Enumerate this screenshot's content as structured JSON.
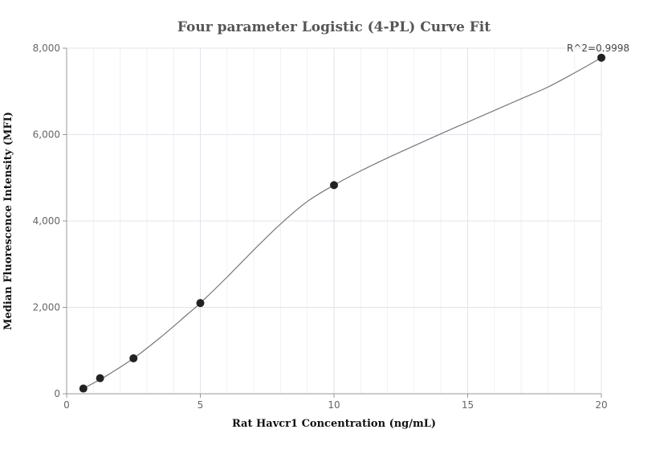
{
  "chart_data": {
    "type": "scatter",
    "title": "Four parameter Logistic (4-PL) Curve Fit",
    "xlabel": "Rat Havcr1 Concentration (ng/mL)",
    "ylabel": "Median Fluorescence Intensity (MFI)",
    "xlim": [
      0,
      20
    ],
    "ylim": [
      0,
      8000
    ],
    "x_ticks": [
      0,
      5,
      10,
      15,
      20
    ],
    "x_tick_labels": [
      "0",
      "5",
      "10",
      "15",
      "20"
    ],
    "y_ticks": [
      0,
      2000,
      4000,
      6000,
      8000
    ],
    "y_tick_labels": [
      "0",
      "2,000",
      "4,000",
      "6,000",
      "8,000"
    ],
    "grid": true,
    "annotation": "R^2=0.9998",
    "series": [
      {
        "points": [
          {
            "x": 0.625,
            "y": 120
          },
          {
            "x": 1.25,
            "y": 360
          },
          {
            "x": 2.5,
            "y": 820
          },
          {
            "x": 5,
            "y": 2100
          },
          {
            "x": 10,
            "y": 4830
          },
          {
            "x": 20,
            "y": 7780
          }
        ],
        "color": "#222222"
      }
    ],
    "fit_curve": {
      "x": [
        0.625,
        1.5,
        2.5,
        3.5,
        4.5,
        5,
        6,
        7,
        8,
        9,
        10,
        11,
        12,
        13,
        14,
        15,
        16,
        17,
        18,
        19,
        20
      ],
      "y": [
        120,
        420,
        820,
        1300,
        1830,
        2100,
        2700,
        3330,
        3930,
        4450,
        4830,
        5160,
        5460,
        5740,
        6020,
        6290,
        6560,
        6830,
        7100,
        7430,
        7780
      ],
      "color": "#777777"
    }
  }
}
